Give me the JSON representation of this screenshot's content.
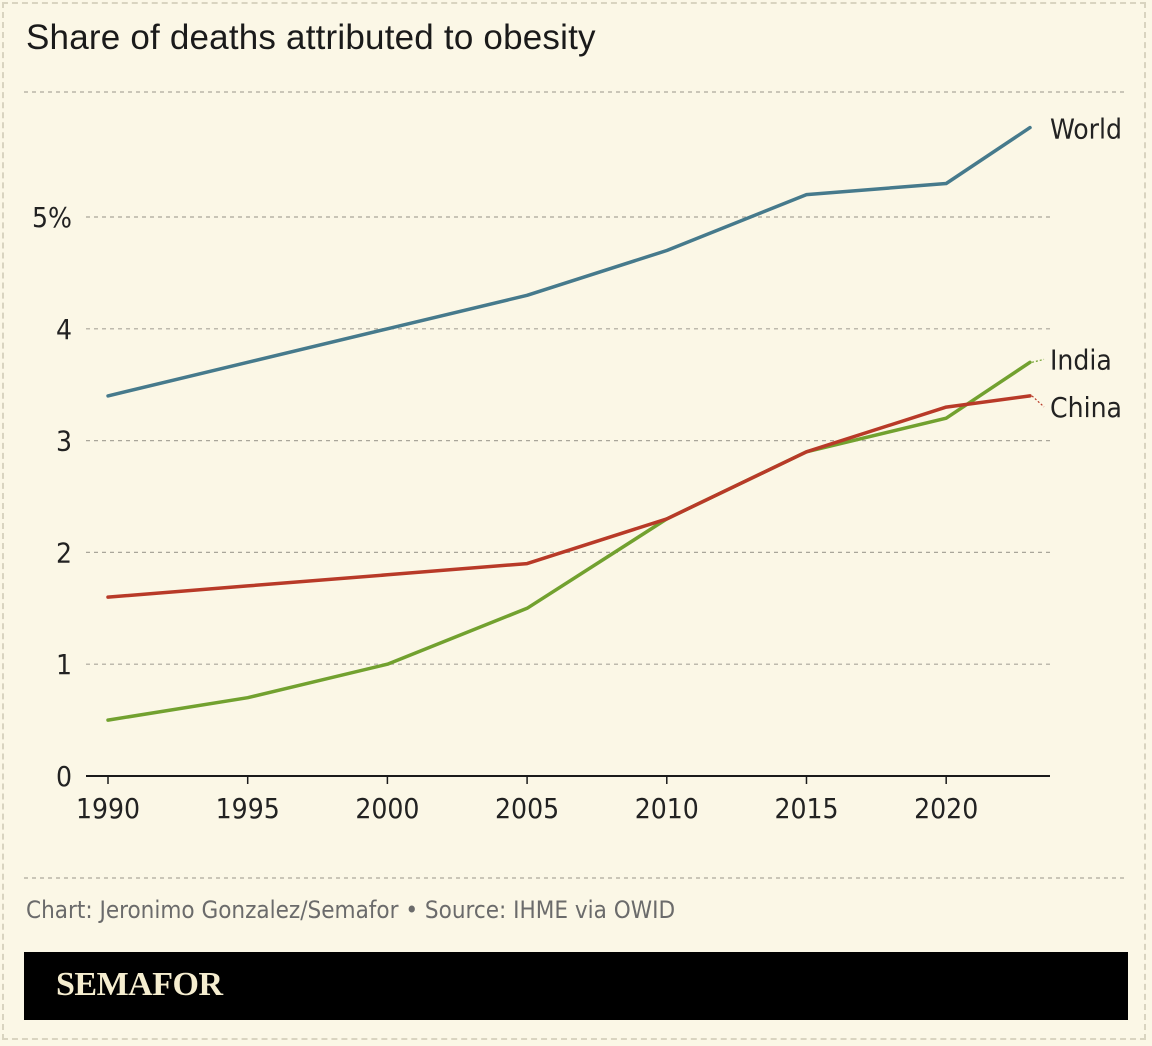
{
  "header": {
    "title": "Share of deaths attributed to obesity"
  },
  "footer": {
    "credits": "Chart: Jeronimo Gonzalez/Semafor • Source: IHME via OWID",
    "brand": "SEMAFOR"
  },
  "colors": {
    "background": "#fbf7e6",
    "World": "#467a8c",
    "India": "#72a12f",
    "China": "#b83a28"
  },
  "chart_data": {
    "type": "line",
    "title": "Share of deaths attributed to obesity",
    "xlabel": "",
    "ylabel": "",
    "x": [
      1990,
      1995,
      2000,
      2005,
      2010,
      2015,
      2020,
      2023
    ],
    "xticks": [
      "1990",
      "1995",
      "2000",
      "2005",
      "2010",
      "2015",
      "2020"
    ],
    "yticks": [
      "0",
      "1",
      "2",
      "3",
      "4",
      "5%"
    ],
    "ylim": [
      0,
      5.8
    ],
    "xlim": [
      1990,
      2023
    ],
    "grid": true,
    "legend": "direct labels at right end of lines",
    "series": [
      {
        "name": "World",
        "values": [
          3.4,
          3.7,
          4.0,
          4.3,
          4.7,
          5.2,
          5.3,
          5.8
        ]
      },
      {
        "name": "India",
        "values": [
          0.5,
          0.7,
          1.0,
          1.5,
          2.3,
          2.9,
          3.2,
          3.7
        ]
      },
      {
        "name": "China",
        "values": [
          1.6,
          1.7,
          1.8,
          1.9,
          2.3,
          2.9,
          3.3,
          3.4
        ]
      }
    ]
  }
}
